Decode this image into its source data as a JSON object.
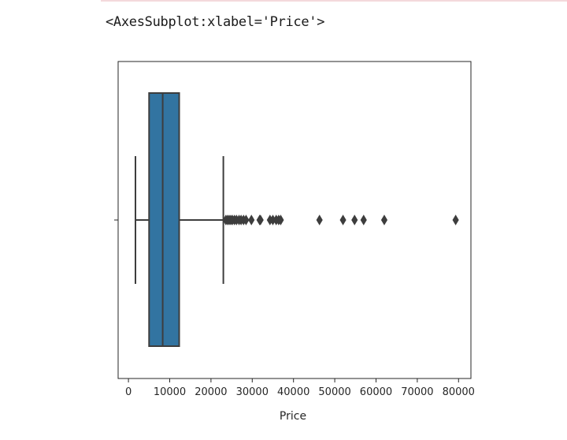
{
  "notebook": {
    "output_text": "<AxesSubplot:xlabel='Price'>"
  },
  "chart_data": {
    "type": "box",
    "orientation": "horizontal",
    "xlabel": "Price",
    "ylabel": "",
    "xlim": [
      -2500,
      83000
    ],
    "xticks": [
      0,
      10000,
      20000,
      30000,
      40000,
      50000,
      60000,
      70000,
      80000
    ],
    "xtick_labels": [
      "0",
      "10000",
      "20000",
      "30000",
      "40000",
      "50000",
      "60000",
      "70000",
      "80000"
    ],
    "grid": false,
    "box": {
      "whisker_low": 1700,
      "q1": 5000,
      "median": 8300,
      "q3": 12300,
      "whisker_high": 23000,
      "color": "#3274a1",
      "line_color": "#3d3d3d"
    },
    "outliers": [
      23600,
      24000,
      24400,
      24800,
      25200,
      25700,
      26200,
      26800,
      27300,
      27900,
      28500,
      29800,
      31800,
      32000,
      34300,
      35000,
      35800,
      36400,
      36900,
      46300,
      52000,
      54800,
      57000,
      62000,
      79300
    ]
  }
}
